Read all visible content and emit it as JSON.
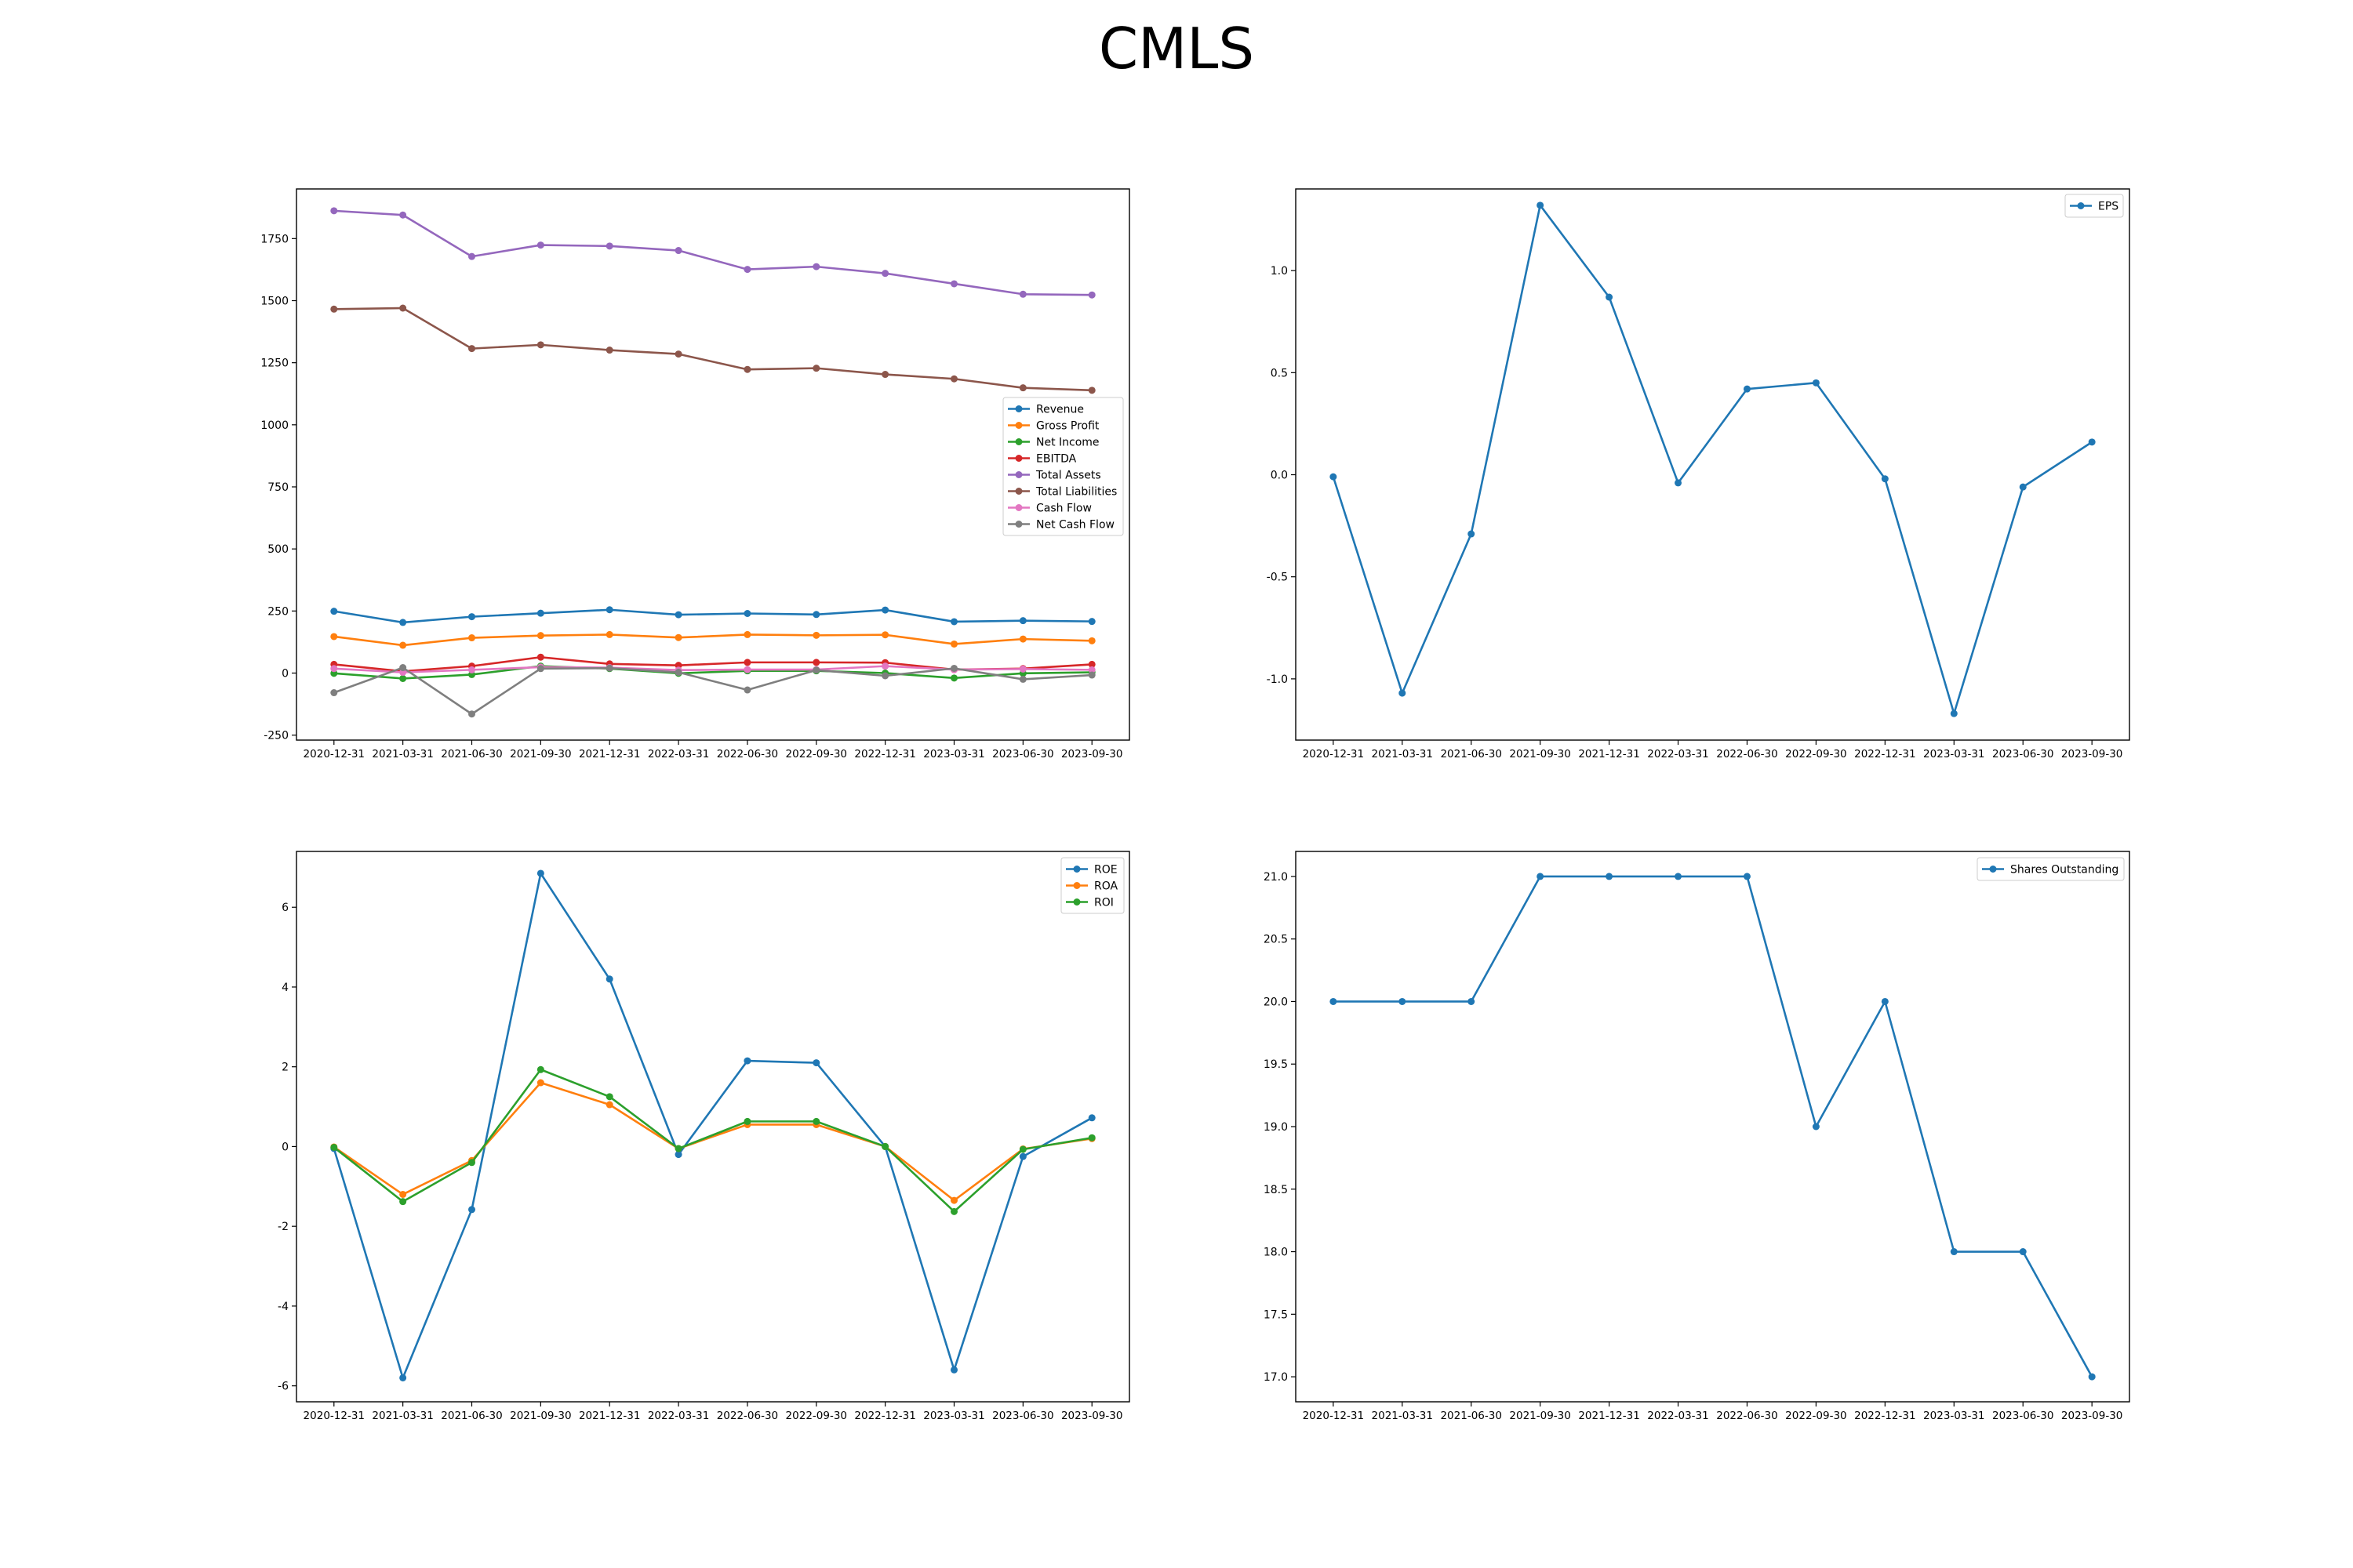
{
  "figure_title": "CMLS",
  "colors": {
    "blue": "#1f77b4",
    "orange": "#ff7f0e",
    "green": "#2ca02c",
    "red": "#d62728",
    "purple": "#9467bd",
    "brown": "#8c564b",
    "pink": "#e377c2",
    "gray": "#7f7f7f"
  },
  "chart_data": [
    {
      "id": "financials",
      "type": "line",
      "x": [
        "2020-12-31",
        "2021-03-31",
        "2021-06-30",
        "2021-09-30",
        "2021-12-31",
        "2022-03-31",
        "2022-06-30",
        "2022-09-30",
        "2022-12-31",
        "2023-03-31",
        "2023-06-30",
        "2023-09-30"
      ],
      "ylim": [
        -270,
        1950
      ],
      "yticks": [
        -250,
        0,
        250,
        500,
        750,
        1000,
        1250,
        1500,
        1750
      ],
      "legend": "center-right",
      "series": [
        {
          "name": "Revenue",
          "color": "#1f77b4",
          "values": [
            249,
            204,
            227,
            241,
            255,
            235,
            240,
            236,
            254,
            207,
            211,
            208
          ]
        },
        {
          "name": "Gross Profit",
          "color": "#ff7f0e",
          "values": [
            147,
            112,
            142,
            151,
            155,
            143,
            155,
            152,
            154,
            117,
            137,
            130
          ]
        },
        {
          "name": "Net Income",
          "color": "#2ca02c",
          "values": [
            -1,
            -22,
            -6,
            28,
            18,
            -1,
            9,
            9,
            0,
            -20,
            -1,
            3
          ]
        },
        {
          "name": "EBITDA",
          "color": "#d62728",
          "values": [
            35,
            7,
            28,
            64,
            37,
            31,
            43,
            43,
            42,
            14,
            18,
            35
          ]
        },
        {
          "name": "Total Assets",
          "color": "#9467bd",
          "values": [
            1862,
            1845,
            1678,
            1724,
            1720,
            1702,
            1626,
            1637,
            1610,
            1568,
            1526,
            1523
          ]
        },
        {
          "name": "Total Liabilities",
          "color": "#8c564b",
          "values": [
            1466,
            1470,
            1307,
            1322,
            1301,
            1285,
            1223,
            1228,
            1203,
            1185,
            1149,
            1139
          ]
        },
        {
          "name": "Cash Flow",
          "color": "#e377c2",
          "values": [
            18,
            3,
            13,
            24,
            22,
            12,
            14,
            14,
            28,
            14,
            16,
            13
          ]
        },
        {
          "name": "Net Cash Flow",
          "color": "#7f7f7f",
          "values": [
            -79,
            22,
            -165,
            18,
            20,
            3,
            -68,
            12,
            -11,
            19,
            -25,
            -8
          ]
        }
      ]
    },
    {
      "id": "eps",
      "type": "line",
      "x": [
        "2020-12-31",
        "2021-03-31",
        "2021-06-30",
        "2021-09-30",
        "2021-12-31",
        "2022-03-31",
        "2022-06-30",
        "2022-09-30",
        "2022-12-31",
        "2023-03-31",
        "2023-06-30",
        "2023-09-30"
      ],
      "ylim": [
        -1.3,
        1.4
      ],
      "yticks": [
        -1.0,
        -0.5,
        0.0,
        0.5,
        1.0
      ],
      "legend": "top-right",
      "series": [
        {
          "name": "EPS",
          "color": "#1f77b4",
          "values": [
            -0.01,
            -1.07,
            -0.29,
            1.32,
            0.87,
            -0.04,
            0.42,
            0.45,
            -0.02,
            -1.17,
            -0.06,
            0.16
          ]
        }
      ]
    },
    {
      "id": "ratios",
      "type": "line",
      "x": [
        "2020-12-31",
        "2021-03-31",
        "2021-06-30",
        "2021-09-30",
        "2021-12-31",
        "2022-03-31",
        "2022-06-30",
        "2022-09-30",
        "2022-12-31",
        "2023-03-31",
        "2023-06-30",
        "2023-09-30"
      ],
      "ylim": [
        -6.4,
        7.4
      ],
      "yticks": [
        -6,
        -4,
        -2,
        0,
        2,
        4,
        6
      ],
      "legend": "top-right",
      "series": [
        {
          "name": "ROE",
          "color": "#1f77b4",
          "values": [
            -0.05,
            -5.8,
            -1.58,
            6.85,
            4.2,
            -0.2,
            2.15,
            2.1,
            0.0,
            -5.6,
            -0.25,
            0.72
          ]
        },
        {
          "name": "ROA",
          "color": "#ff7f0e",
          "values": [
            -0.01,
            -1.2,
            -0.35,
            1.6,
            1.05,
            -0.05,
            0.55,
            0.55,
            0.0,
            -1.35,
            -0.06,
            0.2
          ]
        },
        {
          "name": "ROI",
          "color": "#2ca02c",
          "values": [
            -0.02,
            -1.38,
            -0.4,
            1.93,
            1.25,
            -0.05,
            0.63,
            0.63,
            0.0,
            -1.63,
            -0.07,
            0.22
          ]
        }
      ]
    },
    {
      "id": "shares",
      "type": "line",
      "x": [
        "2020-12-31",
        "2021-03-31",
        "2021-06-30",
        "2021-09-30",
        "2021-12-31",
        "2022-03-31",
        "2022-06-30",
        "2022-09-30",
        "2022-12-31",
        "2023-03-31",
        "2023-06-30",
        "2023-09-30"
      ],
      "ylim": [
        16.8,
        21.2
      ],
      "yticks": [
        17.0,
        17.5,
        18.0,
        18.5,
        19.0,
        19.5,
        20.0,
        20.5,
        21.0
      ],
      "legend": "top-right",
      "series": [
        {
          "name": "Shares Outstanding",
          "color": "#1f77b4",
          "values": [
            20,
            20,
            20,
            21,
            21,
            21,
            21,
            19,
            20,
            18,
            18,
            17
          ]
        }
      ]
    }
  ]
}
